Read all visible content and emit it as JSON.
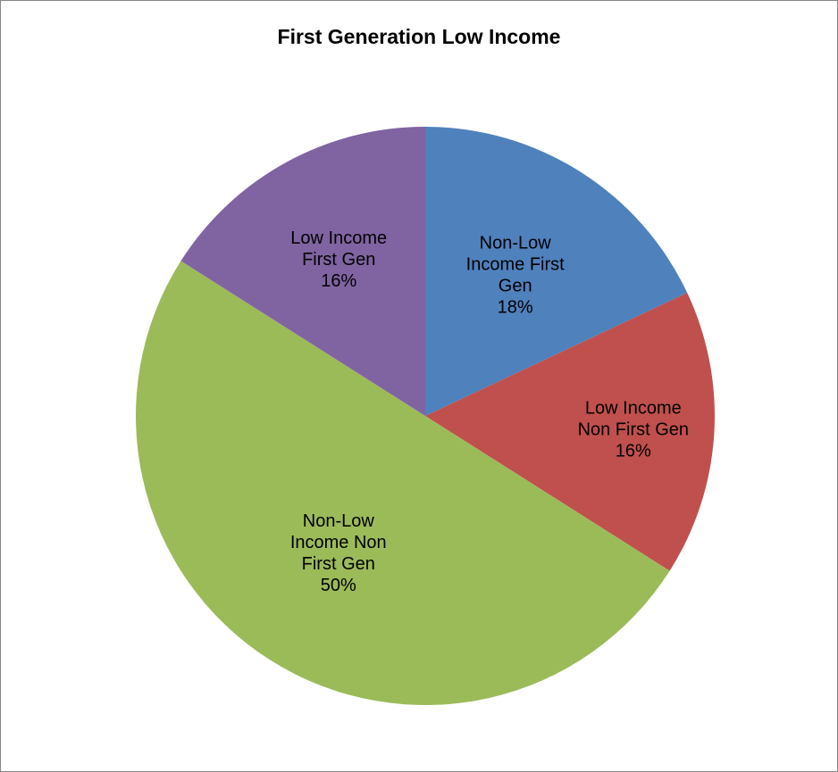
{
  "chart_data": {
    "type": "pie",
    "title": "First Generation Low Income",
    "slices": [
      {
        "label_lines": [
          "Non-Low",
          "Income First",
          "Gen"
        ],
        "percent_label": "18%",
        "value": 18,
        "color": "#4F81BD"
      },
      {
        "label_lines": [
          "Low Income",
          "Non First Gen"
        ],
        "percent_label": "16%",
        "value": 16,
        "color": "#C0504D"
      },
      {
        "label_lines": [
          "Non-Low",
          "Income Non",
          "First Gen"
        ],
        "percent_label": "50%",
        "value": 50,
        "color": "#9BBB59"
      },
      {
        "label_lines": [
          "Low Income",
          "First Gen"
        ],
        "percent_label": "16%",
        "value": 16,
        "color": "#8064A2"
      }
    ]
  }
}
